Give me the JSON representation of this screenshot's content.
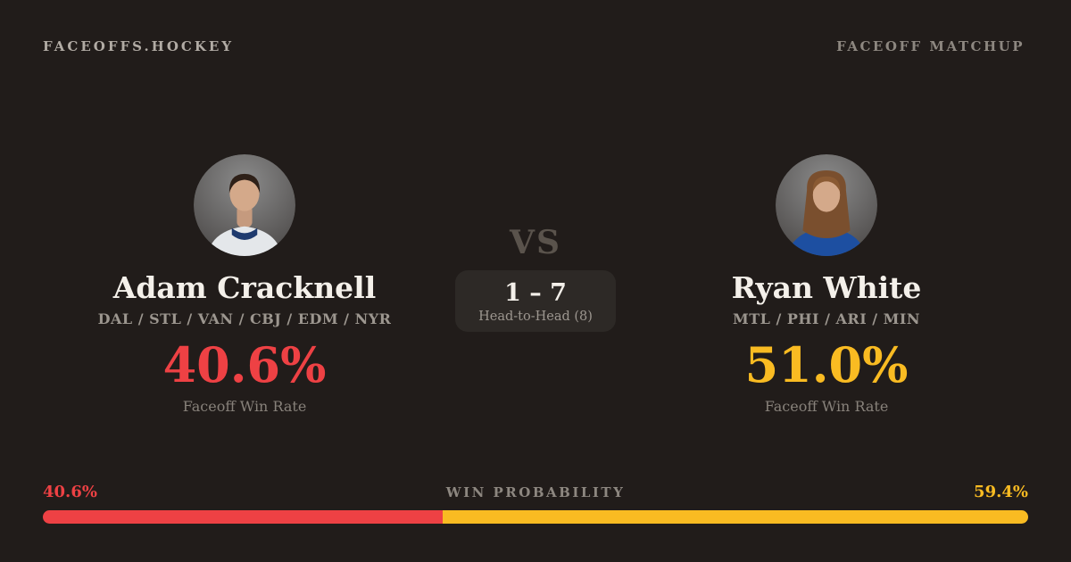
{
  "brand": {
    "label": "FACEOFFS.HOCKEY"
  },
  "header": {
    "page_label": "FACEOFF MATCHUP"
  },
  "players": {
    "left": {
      "name": "Adam Cracknell",
      "teams": "DAL / STL / VAN / CBJ / EDM / NYR",
      "win_rate": "40.6%",
      "win_rate_label": "Faceoff Win Rate",
      "accent_color": "#ee4144",
      "avatar_icon": "short-hair-player-headshot"
    },
    "right": {
      "name": "Ryan White",
      "teams": "MTL / PHI / ARI / MIN",
      "win_rate": "51.0%",
      "win_rate_label": "Faceoff Win Rate",
      "accent_color": "#f9bb22",
      "avatar_icon": "long-hair-player-headshot"
    }
  },
  "matchup": {
    "vs_label": "VS",
    "head_to_head_score": "1 – 7",
    "head_to_head_label": "Head-to-Head (8)"
  },
  "win_probability": {
    "label": "WIN PROBABILITY",
    "left": {
      "display": "40.6%",
      "value": 40.6,
      "color": "#ee4144"
    },
    "right": {
      "display": "59.4%",
      "value": 59.4,
      "color": "#f9bb22"
    }
  },
  "theme": {
    "background": "#211c1a",
    "panel_background": "#2d2926",
    "text_primary": "#f4f0ea",
    "text_muted": "#8d8780"
  }
}
